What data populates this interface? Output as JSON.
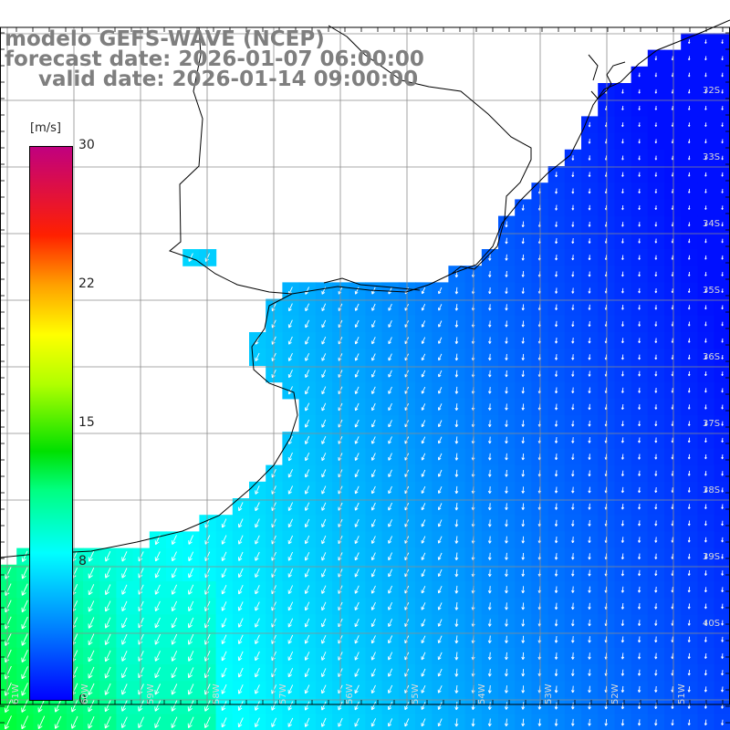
{
  "titles": {
    "model": "modelo GEFS-WAVE (NCEP)",
    "forecast": "forecast date: 2026-01-07 06:00:00",
    "valid": "valid date: 2026-01-14 09:00:00"
  },
  "colorbar": {
    "unit": "[m/s]",
    "ticks": [
      "30",
      "22",
      "15",
      "8",
      "0"
    ],
    "tick_values": [
      30,
      22,
      15,
      8,
      0
    ],
    "range": [
      0,
      30
    ],
    "colors": [
      "#0000ff",
      "#00a0ff",
      "#00ffff",
      "#00ff00",
      "#ffff00",
      "#ff8000",
      "#ff0000",
      "#c00080"
    ]
  },
  "map": {
    "lat_labels": [
      "33S",
      "34S",
      "35S",
      "36S",
      "37S",
      "38S",
      "39S",
      "40S"
    ],
    "lon_labels": [
      "61W",
      "60W",
      "59W",
      "58W",
      "57W",
      "56W",
      "55W",
      "54W",
      "53W",
      "52W",
      "51W",
      "50W"
    ],
    "land_color": "#ffffff",
    "grid_color": "#8c8c8c",
    "coast_color": "#000000",
    "arrow_color": "#ffffff"
  }
}
